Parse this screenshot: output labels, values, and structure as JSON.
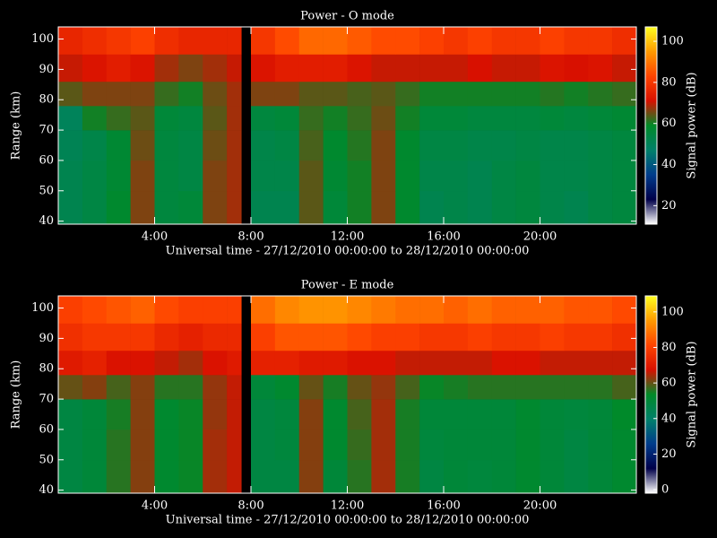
{
  "chart_data": [
    {
      "type": "heatmap",
      "title": "Power - O mode",
      "xlabel": "Universal time - 27/12/2010 00:00:00 to 28/12/2010 00:00:00",
      "ylabel": "Range (km)",
      "colorbar_label": "Signal power (dB)",
      "xlim": [
        0,
        24
      ],
      "ylim": [
        39,
        104
      ],
      "clim": [
        11,
        107
      ],
      "xticks": [
        {
          "value": 4,
          "label": "4:00"
        },
        {
          "value": 8,
          "label": "8:00"
        },
        {
          "value": 12,
          "label": "12:00"
        },
        {
          "value": 16,
          "label": "16:00"
        },
        {
          "value": 20,
          "label": "20:00"
        }
      ],
      "yticks": [
        40,
        50,
        60,
        70,
        80,
        90,
        100
      ],
      "cticks": [
        20,
        40,
        60,
        80,
        100
      ],
      "colormap": [
        "#ffffff",
        "#00004a",
        "#003c8c",
        "#00806a",
        "#008a28",
        "#d81000",
        "#ff4400",
        "#ff9a00",
        "#ffff20"
      ],
      "x_bins": [
        0,
        1,
        2,
        3,
        4,
        5,
        6,
        7,
        7.6,
        8,
        9,
        10,
        11,
        12,
        13,
        14,
        15,
        16,
        17,
        18,
        19,
        20,
        21,
        22,
        23,
        24
      ],
      "y_bins": [
        39,
        50,
        60,
        70,
        78,
        86,
        95,
        104
      ],
      "z": [
        [
          52,
          54,
          58,
          66,
          55,
          56,
          66,
          68,
          null,
          52,
          52,
          64,
          56,
          60,
          66,
          58,
          52,
          53,
          52,
          54,
          55,
          53,
          52,
          54,
          55
        ],
        [
          52,
          54,
          57,
          66,
          55,
          54,
          66,
          68,
          null,
          53,
          53,
          64,
          57,
          60,
          66,
          58,
          53,
          53,
          52,
          54,
          55,
          53,
          53,
          54,
          55
        ],
        [
          51,
          53,
          57,
          65,
          55,
          54,
          65,
          68,
          null,
          53,
          54,
          63,
          58,
          61,
          66,
          58,
          54,
          54,
          53,
          53,
          54,
          53,
          53,
          54,
          55
        ],
        [
          50,
          60,
          62,
          64,
          56,
          55,
          64,
          68,
          null,
          55,
          56,
          62,
          60,
          62,
          65,
          60,
          56,
          56,
          55,
          55,
          55,
          56,
          55,
          56,
          57
        ],
        [
          64,
          66,
          66,
          66,
          62,
          60,
          65,
          68,
          null,
          66,
          66,
          64,
          64,
          63,
          64,
          62,
          60,
          60,
          60,
          60,
          60,
          61,
          60,
          61,
          62
        ],
        [
          70,
          72,
          74,
          72,
          68,
          66,
          68,
          70,
          null,
          72,
          74,
          74,
          74,
          72,
          70,
          70,
          70,
          70,
          71,
          70,
          70,
          72,
          71,
          72,
          70
        ],
        [
          76,
          78,
          80,
          82,
          78,
          76,
          76,
          76,
          null,
          80,
          84,
          88,
          88,
          86,
          84,
          84,
          82,
          80,
          82,
          80,
          80,
          82,
          80,
          80,
          78
        ]
      ]
    },
    {
      "type": "heatmap",
      "title": "Power - E mode",
      "xlabel": "Universal time - 27/12/2010 00:00:00 to 28/12/2010 00:00:00",
      "ylabel": "Range (km)",
      "colorbar_label": "Signal power (dB)",
      "xlim": [
        0,
        24
      ],
      "ylim": [
        39,
        104
      ],
      "clim": [
        -2,
        109
      ],
      "xticks": [
        {
          "value": 4,
          "label": "4:00"
        },
        {
          "value": 8,
          "label": "8:00"
        },
        {
          "value": 12,
          "label": "12:00"
        },
        {
          "value": 16,
          "label": "16:00"
        },
        {
          "value": 20,
          "label": "20:00"
        }
      ],
      "yticks": [
        40,
        50,
        60,
        70,
        80,
        90,
        100
      ],
      "cticks": [
        0,
        20,
        40,
        60,
        80,
        100
      ],
      "colormap": [
        "#ffffff",
        "#00004a",
        "#003c8c",
        "#00806a",
        "#008a28",
        "#d81000",
        "#ff4400",
        "#ff9a00",
        "#ffff20"
      ],
      "x_bins": [
        0,
        1,
        2,
        3,
        4,
        5,
        6,
        7,
        7.6,
        8,
        9,
        10,
        11,
        12,
        13,
        14,
        15,
        16,
        17,
        18,
        19,
        20,
        21,
        22,
        23,
        24
      ],
      "y_bins": [
        39,
        50,
        60,
        70,
        78,
        86,
        95,
        104
      ],
      "z": [
        [
          48,
          50,
          56,
          62,
          52,
          54,
          64,
          66,
          null,
          48,
          48,
          62,
          50,
          56,
          64,
          55,
          48,
          50,
          49,
          50,
          52,
          50,
          48,
          50,
          52
        ],
        [
          48,
          50,
          56,
          62,
          52,
          54,
          64,
          66,
          null,
          48,
          49,
          62,
          52,
          57,
          64,
          55,
          49,
          50,
          50,
          50,
          52,
          50,
          48,
          50,
          52
        ],
        [
          48,
          50,
          55,
          62,
          52,
          54,
          63,
          66,
          null,
          48,
          49,
          62,
          52,
          58,
          64,
          55,
          50,
          50,
          50,
          50,
          52,
          50,
          49,
          50,
          53
        ],
        [
          60,
          62,
          58,
          62,
          56,
          56,
          63,
          66,
          null,
          50,
          52,
          60,
          55,
          60,
          63,
          58,
          54,
          55,
          56,
          56,
          56,
          56,
          56,
          56,
          58
        ],
        [
          70,
          72,
          68,
          68,
          66,
          64,
          68,
          70,
          null,
          72,
          72,
          70,
          70,
          68,
          68,
          66,
          66,
          66,
          66,
          68,
          68,
          66,
          66,
          66,
          66
        ],
        [
          76,
          78,
          78,
          78,
          74,
          72,
          74,
          74,
          null,
          80,
          84,
          84,
          84,
          82,
          80,
          80,
          78,
          78,
          80,
          78,
          78,
          80,
          78,
          78,
          76
        ],
        [
          80,
          82,
          84,
          86,
          82,
          80,
          80,
          80,
          null,
          88,
          92,
          94,
          94,
          92,
          90,
          88,
          88,
          86,
          88,
          86,
          86,
          86,
          84,
          84,
          82
        ]
      ]
    }
  ]
}
